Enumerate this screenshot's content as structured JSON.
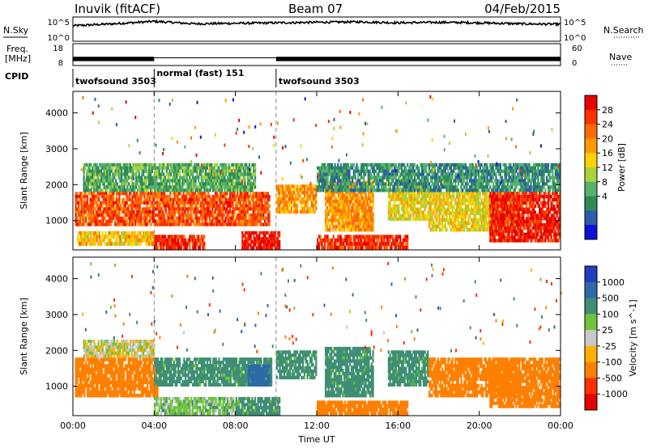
{
  "header": {
    "station": "Inuvik (fitACF)",
    "beam": "Beam 07",
    "date": "04/Feb/2015"
  },
  "top_panels": {
    "nsky_label": "N.Sky",
    "nsearch_label": "N.Search",
    "nsky_ticks": [
      "10^5",
      "10^0"
    ],
    "nsearch_ticks": [
      "10^5",
      "10^0"
    ],
    "freq_label_line1": "Freq.",
    "freq_label_line2": "[MHz]",
    "freq_ticks": [
      "18",
      "8"
    ],
    "nave_label": "Nave",
    "nave_ticks": [
      "60",
      "0"
    ],
    "cpid_label": "CPID",
    "modes": [
      {
        "name": "twofsound 3503",
        "start_hour": 0,
        "end_hour": 4
      },
      {
        "name": "normal (fast) 151",
        "start_hour": 4,
        "end_hour": 10
      },
      {
        "name": "twofsound 3503",
        "start_hour": 10,
        "end_hour": 24
      }
    ]
  },
  "x_axis": {
    "label": "Time UT",
    "ticks": [
      "00:00",
      "04:00",
      "08:00",
      "12:00",
      "16:00",
      "20:00",
      "00:00"
    ]
  },
  "colorbar_power": {
    "label": "Power [dB]",
    "ticks": [
      "28",
      "24",
      "20",
      "16",
      "12",
      "8",
      "4"
    ],
    "colors": [
      "#e60000",
      "#ff3000",
      "#ff6a00",
      "#ff9a00",
      "#ffd200",
      "#a8d33c",
      "#56b26e",
      "#2e8b57",
      "#2a5caa",
      "#1010d8"
    ]
  },
  "colorbar_velocity": {
    "label": "Velocity [m s^-1]",
    "ticks": [
      "1000",
      "500",
      "100",
      "25",
      "-25",
      "-100",
      "-500",
      "-1000"
    ],
    "colors": [
      "#1f3fbf",
      "#2c6aa8",
      "#3f8e76",
      "#6ec43c",
      "#c8c8c8",
      "#ffb000",
      "#ff8000",
      "#ff3000",
      "#e60000"
    ]
  },
  "chart_data": [
    {
      "type": "line",
      "panel": "N.Sky / N.Search",
      "x_unit": "hours UT",
      "ylim_log10": [
        0,
        5
      ],
      "x": [
        0,
        2,
        4,
        6,
        8,
        10,
        12,
        14,
        16,
        18,
        20,
        22,
        24
      ],
      "series": [
        {
          "name": "N.Sky",
          "values_log10": [
            3.2,
            3.6,
            4.1,
            3.6,
            3.7,
            3.8,
            3.9,
            4.0,
            3.8,
            3.9,
            3.8,
            3.6,
            3.5
          ]
        }
      ]
    },
    {
      "type": "line",
      "panel": "Freq. / Nave",
      "x_unit": "hours UT",
      "x": [
        0,
        4,
        4,
        10,
        10,
        24
      ],
      "series": [
        {
          "name": "Freq.",
          "ylim": [
            8,
            18
          ],
          "values": [
            11,
            11,
            11.5,
            11.5,
            11,
            11
          ]
        }
      ]
    },
    {
      "type": "heatmap",
      "panel": "Power",
      "x_unit": "hours UT",
      "xlim": [
        0,
        24
      ],
      "ylabel": "Slant Range [km]",
      "ylim": [
        180,
        4600
      ],
      "yticks": [
        1000,
        2000,
        3000,
        4000
      ],
      "value_label": "Power [dB]",
      "value_range": [
        0,
        30
      ],
      "regions": [
        {
          "x0": 0.1,
          "x1": 9.7,
          "y0": 850,
          "y1": 1800,
          "value": 24
        },
        {
          "x0": 0.5,
          "x1": 9.0,
          "y0": 1800,
          "y1": 2600,
          "value": 10
        },
        {
          "x0": 0.2,
          "x1": 4.0,
          "y0": 300,
          "y1": 700,
          "value": 18
        },
        {
          "x0": 4.0,
          "x1": 6.5,
          "y0": 200,
          "y1": 600,
          "value": 26
        },
        {
          "x0": 8.3,
          "x1": 10.2,
          "y0": 200,
          "y1": 700,
          "value": 28
        },
        {
          "x0": 10.0,
          "x1": 12.0,
          "y0": 1200,
          "y1": 2000,
          "value": 20
        },
        {
          "x0": 12.4,
          "x1": 14.8,
          "y0": 700,
          "y1": 2100,
          "value": 20
        },
        {
          "x0": 12.0,
          "x1": 16.5,
          "y0": 200,
          "y1": 600,
          "value": 26
        },
        {
          "x0": 15.5,
          "x1": 17.5,
          "y0": 1000,
          "y1": 2000,
          "value": 16
        },
        {
          "x0": 17.5,
          "x1": 22.0,
          "y0": 700,
          "y1": 1800,
          "value": 16
        },
        {
          "x0": 20.5,
          "x1": 24.0,
          "y0": 400,
          "y1": 1800,
          "value": 27
        },
        {
          "x0": 12.0,
          "x1": 24.0,
          "y0": 1800,
          "y1": 2600,
          "value": 8
        }
      ]
    },
    {
      "type": "heatmap",
      "panel": "Velocity",
      "x_unit": "hours UT",
      "xlim": [
        0,
        24
      ],
      "ylabel": "Slant Range [km]",
      "ylim": [
        180,
        4600
      ],
      "yticks": [
        1000,
        2000,
        3000,
        4000
      ],
      "value_label": "Velocity [m s^-1]",
      "value_range": [
        -1000,
        1000
      ],
      "regions": [
        {
          "x0": 0.1,
          "x1": 4.2,
          "y0": 700,
          "y1": 1800,
          "value": -300
        },
        {
          "x0": 0.5,
          "x1": 4.0,
          "y0": 1800,
          "y1": 2300,
          "value": 0
        },
        {
          "x0": 4.0,
          "x1": 9.8,
          "y0": 1000,
          "y1": 1800,
          "value": 150
        },
        {
          "x0": 8.6,
          "x1": 9.7,
          "y0": 1000,
          "y1": 1600,
          "value": 900
        },
        {
          "x0": 4.0,
          "x1": 8.0,
          "y0": 200,
          "y1": 700,
          "value": 60
        },
        {
          "x0": 8.0,
          "x1": 10.2,
          "y0": 200,
          "y1": 700,
          "value": 150
        },
        {
          "x0": 10.0,
          "x1": 12.0,
          "y0": 1200,
          "y1": 2000,
          "value": 150
        },
        {
          "x0": 12.4,
          "x1": 14.8,
          "y0": 700,
          "y1": 2100,
          "value": 150
        },
        {
          "x0": 12.0,
          "x1": 16.5,
          "y0": 200,
          "y1": 600,
          "value": -200
        },
        {
          "x0": 15.5,
          "x1": 17.5,
          "y0": 1000,
          "y1": 2000,
          "value": 150
        },
        {
          "x0": 17.5,
          "x1": 22.0,
          "y0": 700,
          "y1": 1800,
          "value": -200
        },
        {
          "x0": 20.5,
          "x1": 24.0,
          "y0": 400,
          "y1": 1800,
          "value": -300
        }
      ]
    }
  ]
}
